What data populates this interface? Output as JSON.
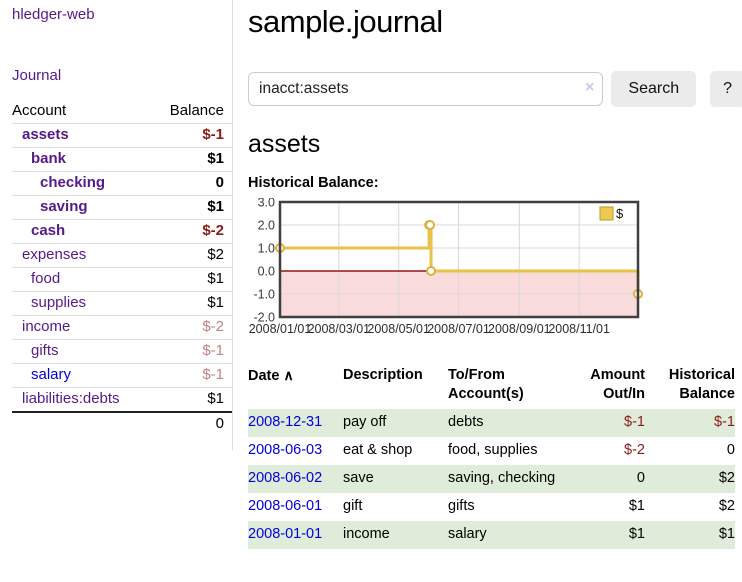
{
  "sidebar": {
    "brand": "hledger-web",
    "journal_link": "Journal",
    "accounts_table": {
      "headers": {
        "account": "Account",
        "balance": "Balance"
      },
      "rows": [
        {
          "account": "assets",
          "balance": "$-1",
          "indent": 1,
          "bold": true,
          "link": "purple"
        },
        {
          "account": "bank",
          "balance": "$1",
          "indent": 2,
          "bold": true,
          "link": "purple"
        },
        {
          "account": "checking",
          "balance": "0",
          "indent": 3,
          "bold": true,
          "link": "purple"
        },
        {
          "account": "saving",
          "balance": "$1",
          "indent": 3,
          "bold": true,
          "link": "purple"
        },
        {
          "account": "cash",
          "balance": "$-2",
          "indent": 2,
          "bold": true,
          "link": "purple"
        },
        {
          "account": "expenses",
          "balance": "$2",
          "indent": 1,
          "bold": false,
          "link": "purple"
        },
        {
          "account": "food",
          "balance": "$1",
          "indent": 2,
          "bold": false,
          "link": "purple"
        },
        {
          "account": "supplies",
          "balance": "$1",
          "indent": 2,
          "bold": false,
          "link": "purple"
        },
        {
          "account": "income",
          "balance": "$-2",
          "indent": 1,
          "bold": false,
          "link": "purple"
        },
        {
          "account": "gifts",
          "balance": "$-1",
          "indent": 2,
          "bold": false,
          "link": "purple"
        },
        {
          "account": "salary",
          "balance": "$-1",
          "indent": 2,
          "bold": false,
          "link": "blue"
        },
        {
          "account": "liabilities:debts",
          "balance": "$1",
          "indent": 1,
          "bold": false,
          "link": "purple"
        }
      ],
      "total": "0"
    }
  },
  "main": {
    "title": "sample.journal",
    "search": {
      "value": "inacct:assets",
      "clear_icon": "×",
      "search_button": "Search",
      "help_button": "?"
    },
    "account_heading": "assets",
    "chart_label": "Historical Balance:"
  },
  "chart_data": {
    "type": "line",
    "step": true,
    "title": "Historical Balance:",
    "legend": {
      "label": "$",
      "position": "top-right",
      "swatch_fill": "#edc951",
      "swatch_border": "#b89a2e"
    },
    "xlim_days": [
      0,
      365
    ],
    "ylim": [
      -2,
      3
    ],
    "grid": true,
    "x_ticks": [
      {
        "day": 0,
        "label": "2008/01/01"
      },
      {
        "day": 60,
        "label": "2008/03/01"
      },
      {
        "day": 121,
        "label": "2008/05/01"
      },
      {
        "day": 182,
        "label": "2008/07/01"
      },
      {
        "day": 244,
        "label": "2008/09/01"
      },
      {
        "day": 305,
        "label": "2008/11/01"
      }
    ],
    "y_ticks": [
      "3.0",
      "2.0",
      "1.0",
      "0.0",
      "-1.0",
      "-2.0"
    ],
    "series": [
      {
        "name": "$",
        "color": "#e8c24a",
        "points": [
          {
            "date": "2008-01-01",
            "day": 0,
            "value": 1
          },
          {
            "date": "2008-06-01",
            "day": 152,
            "value": 2
          },
          {
            "date": "2008-06-02",
            "day": 153,
            "value": 2
          },
          {
            "date": "2008-06-03",
            "day": 154,
            "value": 0
          },
          {
            "date": "2008-12-31",
            "day": 365,
            "value": -1
          }
        ]
      }
    ],
    "negative_region_fill": "#fadbdb",
    "zero_line_color": "#8c1717"
  },
  "transactions": {
    "headers": {
      "date": "Date",
      "sort_icon": "∧",
      "description": "Description",
      "tofrom": "To/From Account(s)",
      "amount": "Amount Out/In",
      "balance": "Historical Balance"
    },
    "rows": [
      {
        "date": "2008-12-31",
        "description": "pay off",
        "accounts": "debts",
        "amount": "$-1",
        "balance": "$-1"
      },
      {
        "date": "2008-06-03",
        "description": "eat & shop",
        "accounts": "food, supplies",
        "amount": "$-2",
        "balance": "0"
      },
      {
        "date": "2008-06-02",
        "description": "save",
        "accounts": "saving, checking",
        "amount": "0",
        "balance": "$2"
      },
      {
        "date": "2008-06-01",
        "description": "gift",
        "accounts": "gifts",
        "amount": "$1",
        "balance": "$2"
      },
      {
        "date": "2008-01-01",
        "description": "income",
        "accounts": "salary",
        "amount": "$1",
        "balance": "$1"
      }
    ]
  }
}
